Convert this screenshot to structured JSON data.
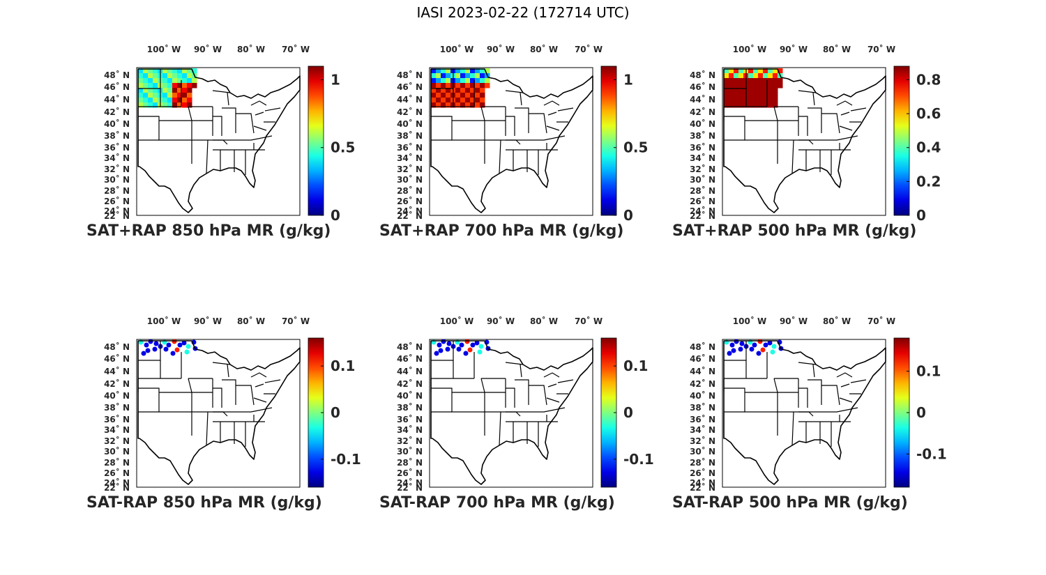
{
  "figure_title": "IASI 2023-02-22 (172714 UTC)",
  "lon_ticks": [
    "100˚ W",
    "90˚ W",
    "80˚ W",
    "70˚ W"
  ],
  "lat_ticks": [
    "48˚ N",
    "46˚ N",
    "44˚ N",
    "42˚ N",
    "40˚ N",
    "38˚ N",
    "36˚ N",
    "34˚ N",
    "32˚ N",
    "30˚ N",
    "28˚ N",
    "26˚ N",
    "24˚ N",
    "22˚ N"
  ],
  "panels": [
    {
      "title": "SAT+RAP 850 hPa MR (g/kg)",
      "colorbar": {
        "ticks": [
          "0",
          "0.5",
          "1"
        ],
        "values": [
          0,
          0.5,
          1
        ],
        "min": 0,
        "max": 1.1
      }
    },
    {
      "title": "SAT+RAP 700 hPa MR (g/kg)",
      "colorbar": {
        "ticks": [
          "0",
          "0.5",
          "1"
        ],
        "values": [
          0,
          0.5,
          1
        ],
        "min": 0,
        "max": 1.1
      }
    },
    {
      "title": "SAT+RAP 500 hPa MR (g/kg)",
      "colorbar": {
        "ticks": [
          "0",
          "0.2",
          "0.4",
          "0.6",
          "0.8"
        ],
        "values": [
          0,
          0.2,
          0.4,
          0.6,
          0.8
        ],
        "min": 0,
        "max": 0.88
      }
    },
    {
      "title": "SAT-RAP 850 hPa MR (g/kg)",
      "colorbar": {
        "ticks": [
          "-0.1",
          "0",
          "0.1"
        ],
        "values": [
          -0.1,
          0,
          0.1
        ],
        "min": -0.16,
        "max": 0.16
      }
    },
    {
      "title": "SAT-RAP 700 hPa MR (g/kg)",
      "colorbar": {
        "ticks": [
          "-0.1",
          "0",
          "0.1"
        ],
        "values": [
          -0.1,
          0,
          0.1
        ],
        "min": -0.16,
        "max": 0.16
      }
    },
    {
      "title": "SAT-RAP 500 hPa MR (g/kg)",
      "colorbar": {
        "ticks": [
          "-0.1",
          "0",
          "0.1"
        ],
        "values": [
          -0.1,
          0,
          0.1
        ],
        "min": -0.18,
        "max": 0.18
      }
    }
  ]
}
